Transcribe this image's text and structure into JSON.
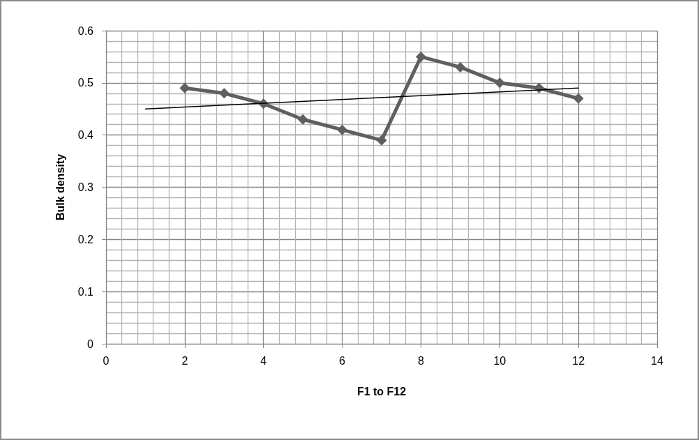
{
  "chart_data": {
    "type": "line",
    "xlabel": "F1 to F12",
    "ylabel": "Bulk density",
    "xlim": [
      0,
      14
    ],
    "xticks": [
      0,
      2,
      4,
      6,
      8,
      10,
      12,
      14
    ],
    "ylim": [
      0,
      0.6
    ],
    "yticks": [
      0,
      0.1,
      0.2,
      0.3,
      0.4,
      0.5,
      0.6
    ],
    "grid": true,
    "marker": "diamond",
    "line_style": "solid",
    "series": [
      {
        "color": "#5f5f5f",
        "x": [
          2,
          3,
          4,
          5,
          6,
          7,
          8,
          9,
          10,
          11,
          12
        ],
        "values": [
          0.49,
          0.48,
          0.46,
          0.43,
          0.41,
          0.39,
          0.55,
          0.53,
          0.5,
          0.49,
          0.47
        ]
      },
      {
        "type": "line",
        "color": "#000000",
        "marker": "none",
        "x": [
          1,
          12
        ],
        "values": [
          0.45,
          0.49
        ]
      }
    ]
  }
}
